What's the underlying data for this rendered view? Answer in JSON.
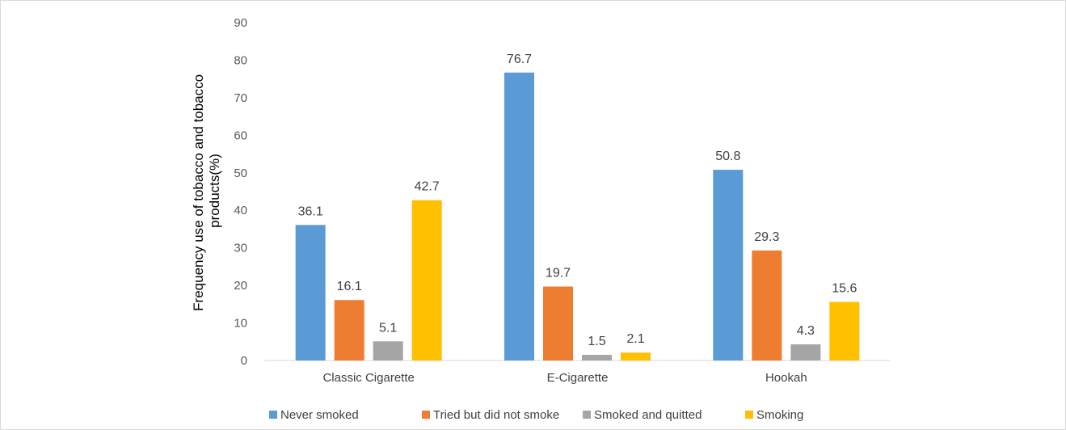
{
  "chart_data": {
    "type": "bar",
    "categories": [
      "Classic Cigarette",
      "E-Cigarette",
      "Hookah"
    ],
    "series": [
      {
        "name": "Never smoked",
        "color": "#5b9bd5",
        "values": [
          36.1,
          76.7,
          50.8
        ],
        "labels": [
          "36.1",
          "76.7",
          "50.8"
        ]
      },
      {
        "name": "Tried but did not smoke",
        "color": "#ed7d31",
        "values": [
          16.1,
          19.7,
          29.3
        ],
        "labels": [
          "16.1",
          "19.7",
          "29.3"
        ]
      },
      {
        "name": "Smoked and quitted",
        "color": "#a5a5a5",
        "values": [
          5.1,
          1.5,
          4.3
        ],
        "labels": [
          "5.1",
          "1.5",
          "4.3"
        ]
      },
      {
        "name": "Smoking",
        "color": "#ffc000",
        "values": [
          42.7,
          2.1,
          15.6
        ],
        "labels": [
          "42.7",
          "2.1",
          "15.6"
        ]
      }
    ],
    "ylabel_lines": [
      "Frequency use of tobacco and tobacco",
      "products(%)"
    ],
    "xlabel": "",
    "ylim": [
      0,
      90
    ],
    "yticks": [
      "0",
      "10",
      "20",
      "30",
      "40",
      "50",
      "60",
      "70",
      "80",
      "90"
    ],
    "grid": false,
    "legend_position": "bottom"
  }
}
